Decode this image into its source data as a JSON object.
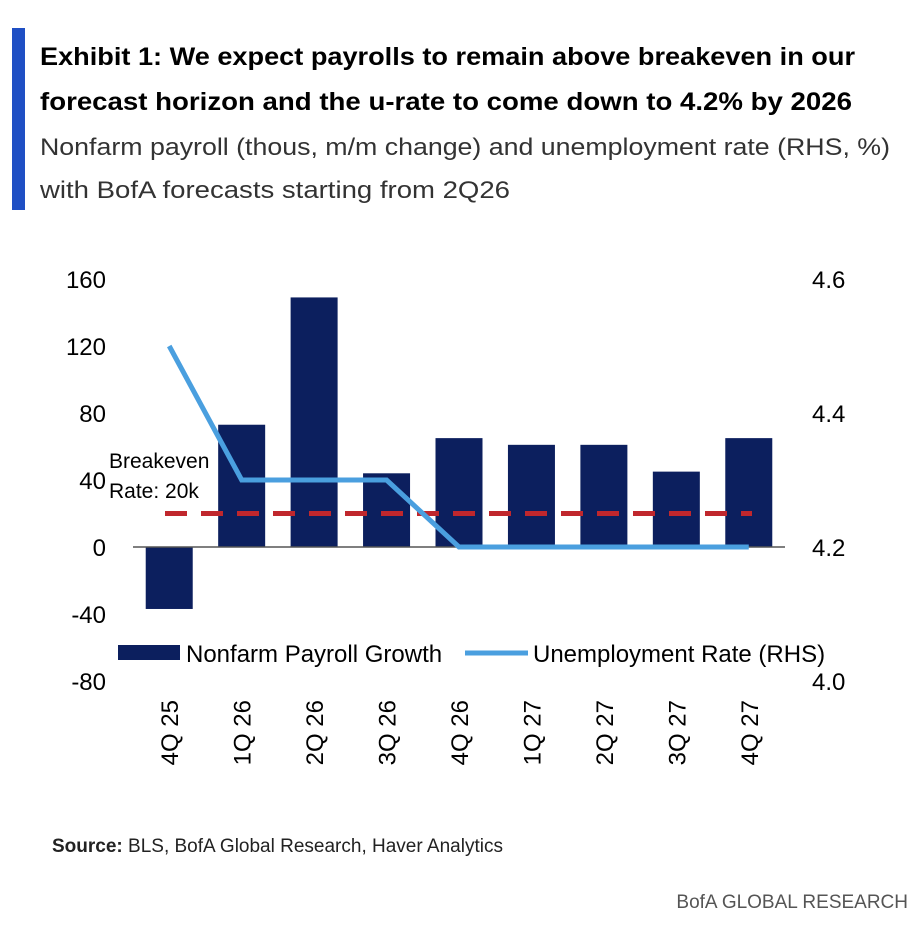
{
  "chart_data": {
    "type": "bar_line",
    "title": [
      "Exhibit 1: We expect payrolls to remain above breakeven in our",
      "forecast horizon and the u-rate to come down to 4.2% by 2026"
    ],
    "subtitle": [
      "Nonfarm payroll (thous, m/m change) and unemployment rate (RHS, %)",
      "with BofA forecasts starting from 2Q26"
    ],
    "categories": [
      "4Q 25",
      "1Q 26",
      "2Q 26",
      "3Q 26",
      "4Q 26",
      "1Q 27",
      "2Q 27",
      "3Q 27",
      "4Q 27"
    ],
    "series": [
      {
        "name": "Nonfarm Payroll Growth",
        "type": "bar",
        "color": "#0c1f5e",
        "values": [
          -37,
          73,
          149,
          44,
          65,
          61,
          61,
          45,
          65
        ]
      },
      {
        "name": "Unemployment Rate (RHS)",
        "type": "line",
        "axis": "y2",
        "color": "#4a9fdf",
        "values": [
          4.5,
          4.3,
          4.3,
          4.3,
          4.2,
          4.2,
          4.2,
          4.2,
          4.2
        ]
      }
    ],
    "breakeven": {
      "value": 20,
      "color": "#c0272d",
      "label": [
        "Breakeven",
        "Rate: 20k"
      ]
    },
    "ylim": [
      -80,
      160
    ],
    "yticks": [
      -80,
      -40,
      0,
      40,
      80,
      120,
      160
    ],
    "y2lim": [
      4.0,
      4.6
    ],
    "y2ticks": [
      {
        "value": 4.0,
        "label": "4.0"
      },
      4.2,
      4.4,
      4.6
    ],
    "source_label": "Source:",
    "source": "BLS, BofA Global Research, Haver Analytics",
    "footer": "BofA GLOBAL RESEARCH"
  }
}
